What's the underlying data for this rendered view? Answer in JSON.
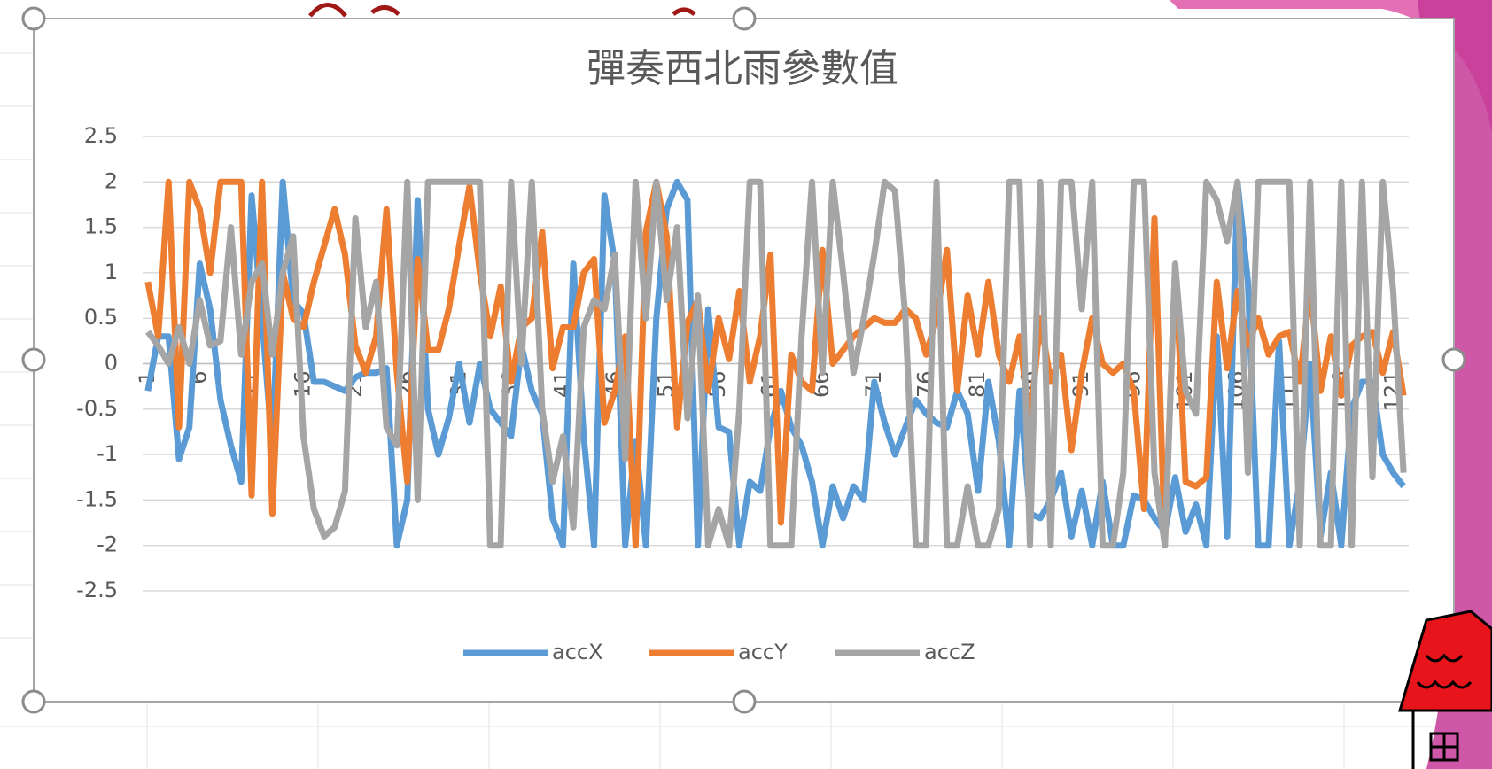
{
  "chart_data": {
    "type": "line",
    "title": "彈奏西北雨參數值",
    "categories": [
      1,
      null,
      null,
      null,
      null,
      6,
      null,
      null,
      null,
      null,
      11,
      null,
      null,
      null,
      null,
      16,
      null,
      null,
      null,
      null,
      21,
      null,
      null,
      null,
      null,
      26,
      null,
      null,
      null,
      null,
      31,
      null,
      null,
      null,
      null,
      36,
      null,
      null,
      null,
      null,
      41,
      null,
      null,
      null,
      null,
      46,
      null,
      null,
      null,
      null,
      51,
      null,
      null,
      null,
      null,
      56,
      null,
      null,
      null,
      null,
      61,
      null,
      null,
      null,
      null,
      66,
      null,
      null,
      null,
      null,
      71,
      null,
      null,
      null,
      null,
      76,
      null,
      null,
      null,
      null,
      81,
      null,
      null,
      null,
      null,
      86,
      null,
      null,
      null,
      null,
      91,
      null,
      null,
      null,
      null,
      96,
      null,
      null,
      null,
      null,
      101,
      null,
      null,
      null,
      null,
      106,
      null,
      null,
      null,
      null,
      111,
      null,
      null,
      null,
      null,
      116,
      null,
      null,
      null,
      null,
      121,
      null
    ],
    "series": [
      {
        "name": "accX",
        "color": "#5b9bd5",
        "values": [
          -0.3,
          0.3,
          0.3,
          -1.05,
          -0.7,
          1.1,
          0.6,
          -0.4,
          -0.9,
          -1.3,
          1.85,
          0.5,
          -0.95,
          2,
          0.7,
          0.55,
          -0.2,
          -0.2,
          -0.25,
          -0.3,
          -0.15,
          -0.1,
          -0.1,
          -0.05,
          -2,
          -1.5,
          1.8,
          -0.5,
          -1,
          -0.6,
          0,
          -0.65,
          0,
          -0.5,
          -0.65,
          -0.8,
          0.2,
          -0.3,
          -0.55,
          -1.7,
          -2,
          1.1,
          -0.8,
          -2,
          1.85,
          1.1,
          -2,
          -0.85,
          -2,
          0.5,
          1.7,
          2,
          1.8,
          -2,
          0.6,
          -0.7,
          -0.75,
          -2,
          -1.3,
          -1.4,
          -0.7,
          -0.3,
          -0.7,
          -0.9,
          -1.3,
          -2,
          -1.35,
          -1.7,
          -1.35,
          -1.5,
          -0.2,
          -0.65,
          -1,
          -0.7,
          -0.4,
          -0.55,
          -0.65,
          -0.7,
          -0.3,
          -0.55,
          -1.4,
          -0.2,
          -0.85,
          -2,
          -0.3,
          -1.65,
          -1.7,
          -1.5,
          -1.2,
          -1.9,
          -1.4,
          -2,
          -1.3,
          -2,
          -2,
          -1.45,
          -1.5,
          -1.7,
          -1.85,
          -1.25,
          -1.85,
          -1.55,
          -2,
          0.3,
          -1.9,
          2,
          0.9,
          -2,
          -2,
          0.25,
          -2,
          -1.3,
          0,
          -1.9,
          -1.2,
          -2,
          -0.5,
          -0.2,
          -0.2,
          -1.0,
          -1.2,
          -1.35
        ]
      },
      {
        "name": "accY",
        "color": "#ed7d31",
        "values": [
          0.9,
          0.3,
          2,
          -0.7,
          2,
          1.7,
          1.0,
          2,
          2,
          2,
          -1.45,
          2,
          -1.65,
          1.0,
          0.5,
          0.4,
          0.9,
          1.3,
          1.7,
          1.2,
          0.2,
          -0.1,
          0.3,
          1.7,
          -0.1,
          -1.3,
          1.15,
          0.15,
          0.15,
          0.6,
          1.3,
          1.95,
          1.0,
          0.3,
          0.85,
          -0.2,
          0.4,
          0.5,
          1.45,
          -0.05,
          0.4,
          0.4,
          1.0,
          1.15,
          -0.65,
          -0.3,
          0.3,
          -2,
          1.45,
          2,
          1.4,
          -0.7,
          0.45,
          0.7,
          -0.3,
          0.5,
          0.05,
          0.8,
          -0.2,
          0.3,
          1.2,
          -1.75,
          0.1,
          -0.2,
          -0.3,
          1.25,
          0.0,
          0.15,
          0.3,
          0.4,
          0.5,
          0.45,
          0.45,
          0.6,
          0.5,
          0.1,
          0.5,
          1.25,
          -0.3,
          0.75,
          0.1,
          0.9,
          0.1,
          -0.2,
          0.3,
          -0.7,
          0.5,
          -0.2,
          0.1,
          -0.95,
          -0.1,
          0.5,
          0.0,
          -0.1,
          0.0,
          -0.3,
          -1.6,
          1.6,
          -2,
          1.1,
          -1.3,
          -1.35,
          -1.25,
          0.9,
          -0.05,
          0.8,
          0.2,
          0.5,
          0.1,
          0.3,
          0.35,
          -0.2,
          0.85,
          -0.3,
          0.3,
          -0.35,
          0.2,
          0.3,
          0.35,
          -0.1,
          0.35,
          -0.35
        ]
      },
      {
        "name": "accZ",
        "color": "#a5a5a5",
        "values": [
          0.35,
          0.2,
          0,
          0.4,
          0,
          0.7,
          0.2,
          0.25,
          1.5,
          0.1,
          0.9,
          1.1,
          0.1,
          1.0,
          1.4,
          -0.8,
          -1.6,
          -1.9,
          -1.8,
          -1.4,
          1.6,
          0.4,
          0.9,
          -0.7,
          -0.9,
          2,
          -1.5,
          2,
          2,
          2,
          2,
          2,
          2,
          -2,
          -2,
          2,
          0,
          2,
          -0.5,
          -1.3,
          -0.8,
          -1.8,
          0.4,
          0.7,
          0.6,
          1.2,
          -1.05,
          2,
          0.5,
          2,
          0.7,
          1.5,
          -0.6,
          0.75,
          -2,
          -1.6,
          -2,
          -0.5,
          2,
          2,
          -2,
          -2,
          -2,
          0.3,
          2,
          -0.1,
          2,
          1.0,
          -0.1,
          0.5,
          1.2,
          2,
          1.9,
          0.5,
          -2,
          -2,
          2,
          -2,
          -2,
          -1.35,
          -2,
          -2,
          -1.6,
          2,
          2,
          -2,
          2,
          -2,
          2,
          2,
          0.6,
          2,
          -2,
          -2,
          -1.2,
          2,
          2,
          -1.2,
          -2,
          1.1,
          -0.3,
          -0.55,
          2,
          1.8,
          1.35,
          2,
          -1.2,
          2,
          2,
          2,
          2,
          -2,
          2,
          -2,
          -2,
          2,
          -2,
          2,
          -1.25,
          2,
          0.8,
          -1.2
        ]
      }
    ],
    "ylim": [
      -2.5,
      2.5
    ],
    "yticks": [
      -2.5,
      -2,
      -1.5,
      -1,
      -0.5,
      0,
      0.5,
      1,
      1.5,
      2,
      2.5
    ],
    "grid": true,
    "legend": "bottom"
  }
}
